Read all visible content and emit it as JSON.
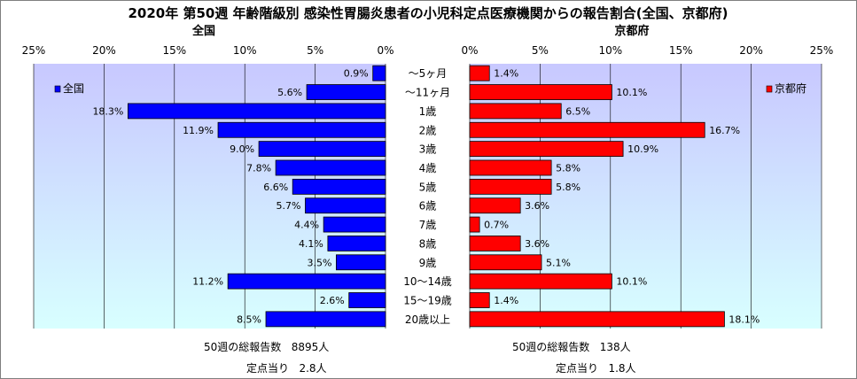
{
  "title": "2020年 第50週 年齢階級別 感染性胃腸炎患者の小児科定点医療機関からの報告割合(全国、京都府)",
  "chart_data": {
    "type": "bar",
    "orientation": "horizontal-butterfly",
    "categories": [
      "～5ヶ月",
      "～11ヶ月",
      "1歳",
      "2歳",
      "3歳",
      "4歳",
      "5歳",
      "6歳",
      "7歳",
      "8歳",
      "9歳",
      "10～14歳",
      "15～19歳",
      "20歳以上"
    ],
    "xlim": [
      0,
      25
    ],
    "x_ticks": [
      "0%",
      "5%",
      "10%",
      "15%",
      "20%",
      "25%"
    ],
    "grid": true,
    "series": [
      {
        "name": "全国",
        "panel_title": "全国",
        "side": "left",
        "legend_position": "top-left",
        "color": "#0000ff",
        "values": [
          0.9,
          5.6,
          18.3,
          11.9,
          9.0,
          7.8,
          6.6,
          5.7,
          4.4,
          4.1,
          3.5,
          11.2,
          2.6,
          8.5
        ],
        "labels": [
          "0.9%",
          "5.6%",
          "18.3%",
          "11.9%",
          "9.0%",
          "7.8%",
          "6.6%",
          "5.7%",
          "4.4%",
          "4.1%",
          "3.5%",
          "11.2%",
          "2.6%",
          "8.5%"
        ]
      },
      {
        "name": "京都府",
        "panel_title": "京都府",
        "side": "right",
        "legend_position": "top-right",
        "color": "#ff0000",
        "values": [
          1.4,
          10.1,
          6.5,
          16.7,
          10.9,
          5.8,
          5.8,
          3.6,
          0.7,
          3.6,
          5.1,
          10.1,
          1.4,
          18.1
        ],
        "labels": [
          "1.4%",
          "10.1%",
          "6.5%",
          "16.7%",
          "10.9%",
          "5.8%",
          "5.8%",
          "3.6%",
          "0.7%",
          "3.6%",
          "5.1%",
          "10.1%",
          "1.4%",
          "18.1%"
        ]
      }
    ],
    "colors": {
      "plot_top": "#c8c8ff",
      "plot_bottom": "#d8ffff",
      "grid": "#000000"
    }
  },
  "footer": {
    "left_total_label": "50週の総報告数",
    "left_total_value": "8895人",
    "left_per_label": "定点当り",
    "left_per_value": "2.8人",
    "right_total_label": "50週の総報告数",
    "right_total_value": "138人",
    "right_per_label": "定点当り",
    "right_per_value": "1.8人"
  }
}
